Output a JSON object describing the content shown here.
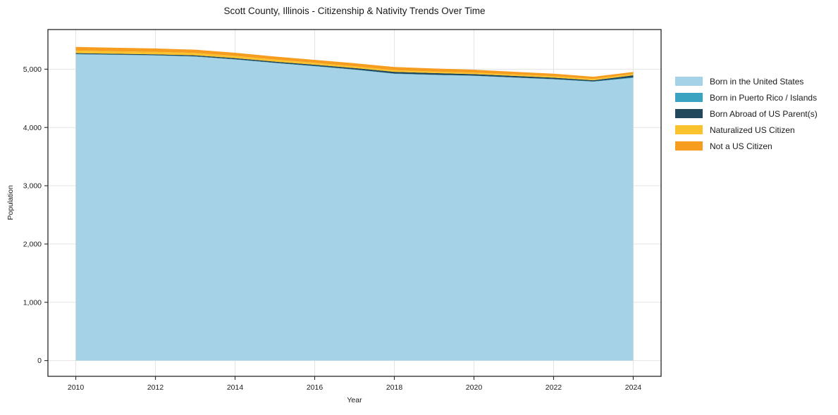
{
  "chart": {
    "title": "Scott County, Illinois - Citizenship & Nativity Trends Over Time",
    "xlabel": "Year",
    "ylabel": "Population"
  },
  "chart_data": {
    "type": "area",
    "stacked": true,
    "title": "Scott County, Illinois - Citizenship & Nativity Trends Over Time",
    "xlabel": "Year",
    "ylabel": "Population",
    "grid": true,
    "legend_position": "right",
    "xlim": [
      2009.3,
      2024.7
    ],
    "ylim": [
      -270,
      5680
    ],
    "x": [
      2010,
      2011,
      2012,
      2013,
      2014,
      2015,
      2016,
      2017,
      2018,
      2019,
      2020,
      2021,
      2022,
      2023,
      2024
    ],
    "x_ticks": [
      2010,
      2012,
      2014,
      2016,
      2018,
      2020,
      2022,
      2024
    ],
    "x_tick_labels": [
      "2010",
      "2012",
      "2014",
      "2016",
      "2018",
      "2020",
      "2022",
      "2024"
    ],
    "y_ticks": [
      0,
      1000,
      2000,
      3000,
      4000,
      5000
    ],
    "y_tick_labels": [
      "0",
      "1,000",
      "2,000",
      "3,000",
      "4,000",
      "5,000"
    ],
    "series": [
      {
        "name": "Born in the United States",
        "color": "#A5D2E6",
        "values": [
          5255,
          5245,
          5235,
          5215,
          5165,
          5105,
          5050,
          4990,
          4920,
          4900,
          4885,
          4855,
          4825,
          4785,
          4850
        ]
      },
      {
        "name": "Born in Puerto Rico / Islands",
        "color": "#3AA3C1",
        "values": [
          5,
          5,
          5,
          5,
          5,
          5,
          5,
          5,
          5,
          5,
          5,
          5,
          5,
          5,
          10
        ]
      },
      {
        "name": "Born Abroad of US Parent(s)",
        "color": "#21485C",
        "values": [
          15,
          15,
          15,
          18,
          20,
          20,
          22,
          25,
          30,
          28,
          25,
          25,
          25,
          20,
          35
        ]
      },
      {
        "name": "Naturalized US Citizen",
        "color": "#FAC22D",
        "values": [
          45,
          43,
          42,
          40,
          38,
          35,
          32,
          30,
          28,
          27,
          26,
          25,
          25,
          22,
          25
        ]
      },
      {
        "name": "Not a US Citizen",
        "color": "#F69C1E",
        "values": [
          62,
          60,
          58,
          56,
          54,
          52,
          50,
          52,
          55,
          52,
          50,
          46,
          42,
          38,
          32
        ]
      }
    ],
    "style": {
      "gridline_color": "#e3e3e3",
      "border_color": "#262626",
      "tick_color": "#262626",
      "text_color": "#1a1a1a"
    }
  }
}
